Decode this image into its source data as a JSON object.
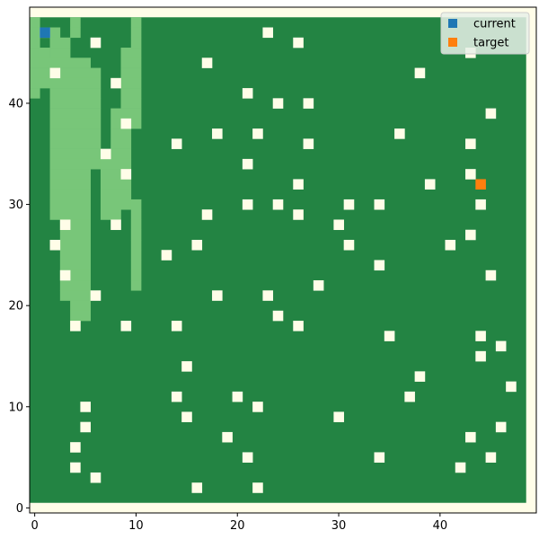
{
  "chart_data": {
    "type": "heatmap",
    "title": "",
    "xlabel": "",
    "ylabel": "",
    "xlim": [
      -0.5,
      49.5
    ],
    "ylim": [
      -0.5,
      49.5
    ],
    "grid": false,
    "legend_position": "top-right",
    "x_ticks": [
      0,
      10,
      20,
      30,
      40
    ],
    "y_ticks": [
      0,
      10,
      20,
      30,
      40
    ],
    "colors": {
      "background_cell": "#fffde8",
      "outer_frame": "#fffde8",
      "dense": "#238443",
      "light": "#78c679",
      "obstacle": "#fffde8",
      "current": "#1f77b4",
      "target": "#ff7f0e",
      "legend_bg": "#e8f0e8"
    },
    "grid_extent": {
      "x": [
        0,
        48
      ],
      "y": [
        1,
        48
      ]
    },
    "light_runs": [
      {
        "y": 48,
        "runs": [
          [
            0,
            0
          ],
          [
            4,
            4
          ],
          [
            10,
            10
          ]
        ]
      },
      {
        "y": 47,
        "runs": [
          [
            0,
            0
          ],
          [
            2,
            2
          ],
          [
            4,
            4
          ],
          [
            10,
            10
          ]
        ]
      },
      {
        "y": 46,
        "runs": [
          [
            0,
            0
          ],
          [
            2,
            3
          ],
          [
            10,
            10
          ]
        ]
      },
      {
        "y": 45,
        "runs": [
          [
            0,
            1
          ],
          [
            2,
            3
          ],
          [
            9,
            10
          ]
        ]
      },
      {
        "y": 44,
        "runs": [
          [
            0,
            0
          ],
          [
            1,
            5
          ],
          [
            9,
            10
          ]
        ]
      },
      {
        "y": 43,
        "runs": [
          [
            0,
            0
          ],
          [
            1,
            6
          ],
          [
            9,
            10
          ]
        ]
      },
      {
        "y": 42,
        "runs": [
          [
            0,
            6
          ],
          [
            9,
            10
          ]
        ]
      },
      {
        "y": 41,
        "runs": [
          [
            0,
            0
          ],
          [
            2,
            6
          ],
          [
            9,
            10
          ]
        ]
      },
      {
        "y": 40,
        "runs": [
          [
            2,
            6
          ],
          [
            9,
            10
          ]
        ]
      },
      {
        "y": 39,
        "runs": [
          [
            2,
            6
          ],
          [
            8,
            10
          ]
        ]
      },
      {
        "y": 38,
        "runs": [
          [
            2,
            6
          ],
          [
            8,
            10
          ]
        ]
      },
      {
        "y": 37,
        "runs": [
          [
            2,
            6
          ],
          [
            8,
            9
          ]
        ]
      },
      {
        "y": 36,
        "runs": [
          [
            2,
            6
          ],
          [
            8,
            9
          ]
        ]
      },
      {
        "y": 35,
        "runs": [
          [
            2,
            6
          ],
          [
            8,
            9
          ]
        ]
      },
      {
        "y": 34,
        "runs": [
          [
            2,
            6
          ],
          [
            7,
            9
          ]
        ]
      },
      {
        "y": 33,
        "runs": [
          [
            2,
            5
          ],
          [
            7,
            9
          ]
        ]
      },
      {
        "y": 32,
        "runs": [
          [
            2,
            5
          ],
          [
            7,
            9
          ]
        ]
      },
      {
        "y": 31,
        "runs": [
          [
            2,
            5
          ],
          [
            7,
            9
          ]
        ]
      },
      {
        "y": 30,
        "runs": [
          [
            2,
            5
          ],
          [
            7,
            9
          ],
          [
            10,
            10
          ]
        ]
      },
      {
        "y": 29,
        "runs": [
          [
            2,
            5
          ],
          [
            7,
            8
          ],
          [
            10,
            10
          ]
        ]
      },
      {
        "y": 28,
        "runs": [
          [
            3,
            5
          ],
          [
            10,
            10
          ]
        ]
      },
      {
        "y": 27,
        "runs": [
          [
            3,
            5
          ],
          [
            10,
            10
          ]
        ]
      },
      {
        "y": 26,
        "runs": [
          [
            3,
            5
          ],
          [
            10,
            10
          ]
        ]
      },
      {
        "y": 25,
        "runs": [
          [
            3,
            5
          ],
          [
            10,
            10
          ]
        ]
      },
      {
        "y": 24,
        "runs": [
          [
            3,
            5
          ],
          [
            10,
            10
          ]
        ]
      },
      {
        "y": 23,
        "runs": [
          [
            3,
            5
          ],
          [
            10,
            10
          ]
        ]
      },
      {
        "y": 22,
        "runs": [
          [
            3,
            5
          ],
          [
            10,
            10
          ]
        ]
      },
      {
        "y": 21,
        "runs": [
          [
            3,
            5
          ]
        ]
      },
      {
        "y": 20,
        "runs": [
          [
            4,
            5
          ]
        ]
      },
      {
        "y": 19,
        "runs": [
          [
            4,
            5
          ]
        ]
      },
      {
        "y": 18,
        "runs": [
          [
            4,
            4
          ]
        ]
      }
    ],
    "obstacles": [
      [
        1,
        47
      ],
      [
        6,
        46
      ],
      [
        23,
        47
      ],
      [
        26,
        46
      ],
      [
        43,
        45
      ],
      [
        17,
        44
      ],
      [
        2,
        43
      ],
      [
        38,
        43
      ],
      [
        8,
        42
      ],
      [
        21,
        41
      ],
      [
        24,
        40
      ],
      [
        27,
        40
      ],
      [
        45,
        39
      ],
      [
        9,
        38
      ],
      [
        18,
        37
      ],
      [
        22,
        37
      ],
      [
        36,
        37
      ],
      [
        14,
        36
      ],
      [
        27,
        36
      ],
      [
        43,
        36
      ],
      [
        7,
        35
      ],
      [
        21,
        34
      ],
      [
        9,
        33
      ],
      [
        43,
        33
      ],
      [
        26,
        32
      ],
      [
        39,
        32
      ],
      [
        21,
        30
      ],
      [
        24,
        30
      ],
      [
        31,
        30
      ],
      [
        34,
        30
      ],
      [
        44,
        30
      ],
      [
        17,
        29
      ],
      [
        26,
        29
      ],
      [
        3,
        28
      ],
      [
        8,
        28
      ],
      [
        30,
        28
      ],
      [
        43,
        27
      ],
      [
        2,
        26
      ],
      [
        16,
        26
      ],
      [
        31,
        26
      ],
      [
        41,
        26
      ],
      [
        13,
        25
      ],
      [
        34,
        24
      ],
      [
        3,
        23
      ],
      [
        45,
        23
      ],
      [
        28,
        22
      ],
      [
        6,
        21
      ],
      [
        18,
        21
      ],
      [
        23,
        21
      ],
      [
        24,
        19
      ],
      [
        4,
        18
      ],
      [
        9,
        18
      ],
      [
        14,
        18
      ],
      [
        26,
        18
      ],
      [
        35,
        17
      ],
      [
        44,
        17
      ],
      [
        46,
        16
      ],
      [
        44,
        15
      ],
      [
        15,
        14
      ],
      [
        38,
        13
      ],
      [
        47,
        12
      ],
      [
        14,
        11
      ],
      [
        20,
        11
      ],
      [
        37,
        11
      ],
      [
        5,
        10
      ],
      [
        22,
        10
      ],
      [
        15,
        9
      ],
      [
        30,
        9
      ],
      [
        5,
        8
      ],
      [
        46,
        8
      ],
      [
        19,
        7
      ],
      [
        43,
        7
      ],
      [
        4,
        6
      ],
      [
        21,
        5
      ],
      [
        34,
        5
      ],
      [
        45,
        5
      ],
      [
        4,
        4
      ],
      [
        42,
        4
      ],
      [
        6,
        3
      ],
      [
        16,
        2
      ],
      [
        22,
        2
      ]
    ],
    "current": [
      1,
      47
    ],
    "target": [
      44,
      32
    ],
    "legend": [
      {
        "label": "current",
        "color": "#1f77b4"
      },
      {
        "label": "target",
        "color": "#ff7f0e"
      }
    ]
  }
}
